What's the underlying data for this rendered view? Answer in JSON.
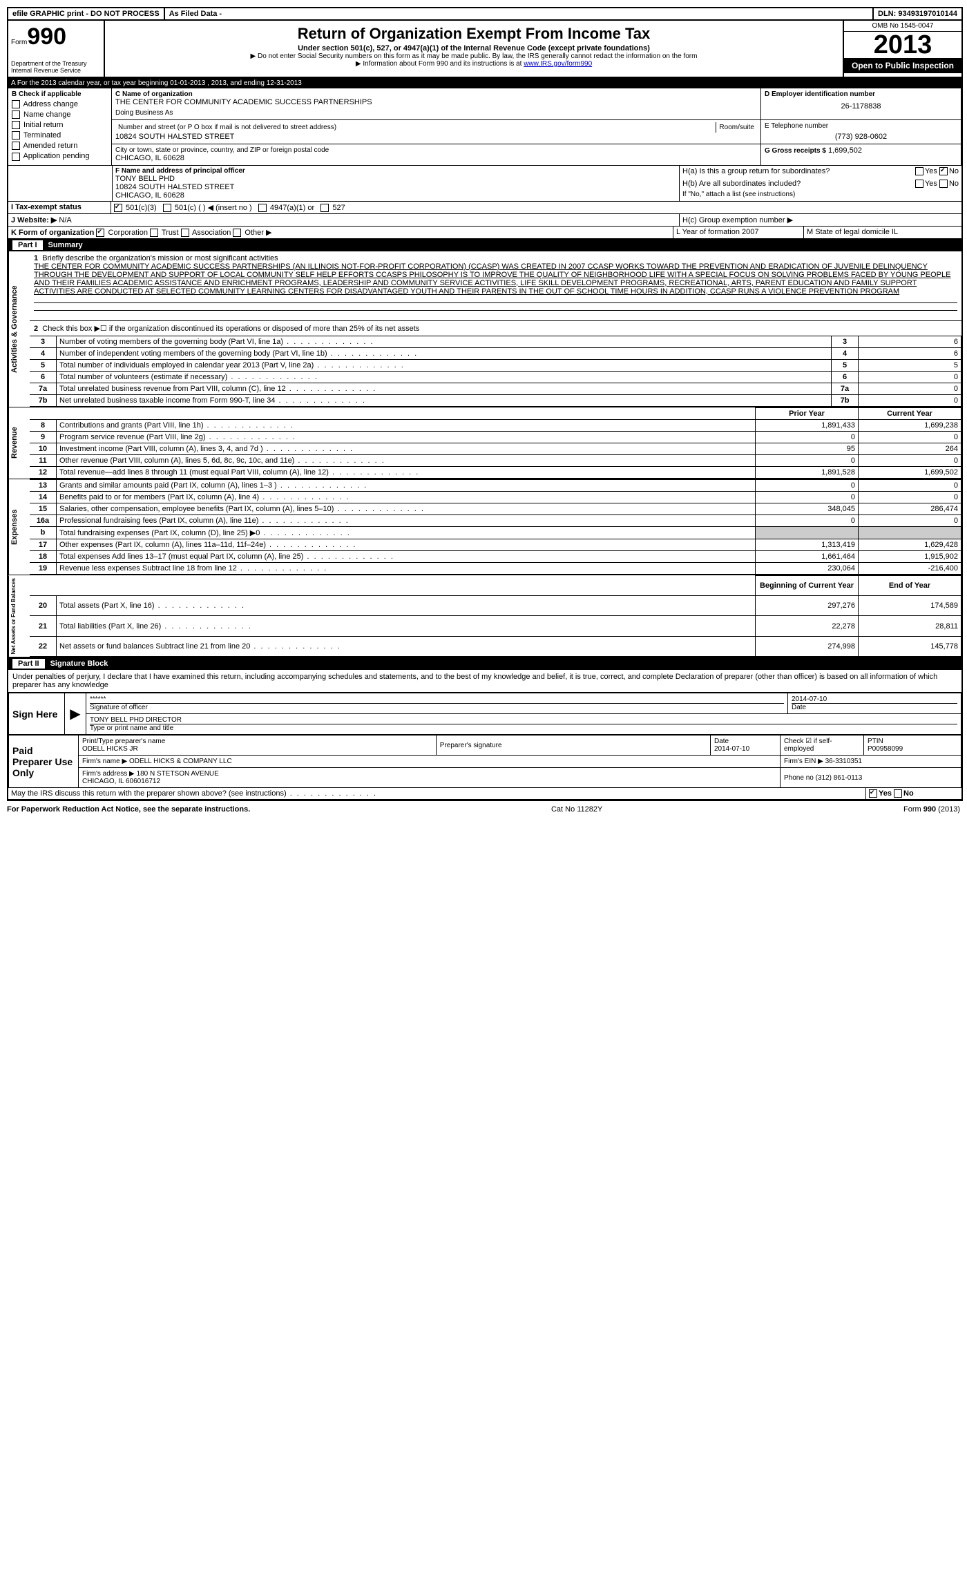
{
  "top": {
    "efile": "efile GRAPHIC print - DO NOT PROCESS",
    "asfiled": "As Filed Data -",
    "dln_label": "DLN:",
    "dln": "93493197010144"
  },
  "header": {
    "form_word": "Form",
    "form_num": "990",
    "dept": "Department of the Treasury\nInternal Revenue Service",
    "title": "Return of Organization Exempt From Income Tax",
    "sub1": "Under section 501(c), 527, or 4947(a)(1) of the Internal Revenue Code (except private foundations)",
    "sub2": "▶ Do not enter Social Security numbers on this form as it may be made public. By law, the IRS generally cannot redact the information on the form",
    "sub3": "▶ Information about Form 990 and its instructions is at ",
    "link": "www.IRS.gov/form990",
    "omb": "OMB No 1545-0047",
    "year": "2013",
    "inspect": "Open to Public Inspection"
  },
  "sectionA": "A For the 2013 calendar year, or tax year beginning 01-01-2013    , 2013, and ending 12-31-2013",
  "checkB": {
    "label": "B Check if applicable",
    "items": [
      "Address change",
      "Name change",
      "Initial return",
      "Terminated",
      "Amended return",
      "Application pending"
    ]
  },
  "org": {
    "c_label": "C Name of organization",
    "name": "THE CENTER FOR COMMUNITY ACADEMIC SUCCESS PARTNERSHIPS",
    "dba_label": "Doing Business As",
    "addr_label": "Number and street (or P O  box if mail is not delivered to street address)",
    "room_label": "Room/suite",
    "addr": "10824 SOUTH HALSTED STREET",
    "city_label": "City or town, state or province, country, and ZIP or foreign postal code",
    "city": "CHICAGO, IL  60628",
    "d_label": "D Employer identification number",
    "ein": "26-1178838",
    "e_label": "E Telephone number",
    "phone": "(773) 928-0602",
    "g_label": "G Gross receipts $",
    "gross": "1,699,502"
  },
  "officer": {
    "f_label": "F  Name and address of principal officer",
    "name": "TONY BELL PHD",
    "addr": "10824 SOUTH HALSTED STREET",
    "city": "CHICAGO, IL  60628"
  },
  "groupH": {
    "ha": "H(a)  Is this a group return for subordinates?",
    "hb": "H(b)  Are all subordinates included?",
    "hb_note": "If \"No,\" attach a list  (see instructions)",
    "hc": "H(c)   Group exemption number ▶"
  },
  "taxexempt": {
    "i": "I  Tax-exempt status",
    "opts": [
      "501(c)(3)",
      "501(c) (  ) ◀ (insert no )",
      "4947(a)(1) or",
      "527"
    ]
  },
  "website": {
    "j": "J  Website: ▶",
    "val": "N/A"
  },
  "lineK": "K Form of organization",
  "k_opts": [
    "Corporation",
    "Trust",
    "Association",
    "Other ▶"
  ],
  "lineL": "L Year of formation  2007",
  "lineM": "M State of legal domicile  IL",
  "part1": {
    "label": "Part I",
    "title": "Summary",
    "q1": "Briefly describe the organization's mission or most significant activities",
    "mission": "THE CENTER FOR COMMUNITY ACADEMIC SUCCESS PARTNERSHIPS (AN ILLINOIS NOT-FOR-PROFIT CORPORATION) (CCASP) WAS CREATED IN 2007  CCASP WORKS TOWARD THE PREVENTION AND ERADICATION OF JUVENILE DELINQUENCY THROUGH THE DEVELOPMENT AND SUPPORT OF LOCAL COMMUNITY SELF HELP EFFORTS  CCASPS PHILOSOPHY IS TO IMPROVE THE QUALITY OF NEIGHBORHOOD LIFE WITH A SPECIAL FOCUS ON SOLVING PROBLEMS FACED BY YOUNG PEOPLE AND THEIR FAMILIES  ACADEMIC ASSISTANCE AND ENRICHMENT PROGRAMS, LEADERSHIP AND COMMUNITY SERVICE ACTIVITIES, LIFE SKILL DEVELOPMENT PROGRAMS, RECREATIONAL, ARTS, PARENT EDUCATION AND FAMILY SUPPORT ACTIVITIES ARE CONDUCTED AT SELECTED COMMUNITY LEARNING CENTERS FOR DISADVANTAGED YOUTH AND THEIR PARENTS IN THE OUT OF SCHOOL TIME HOURS  IN ADDITION, CCASP RUNS A VIOLENCE PREVENTION PROGRAM",
    "q2": "Check this box ▶☐ if the organization discontinued its operations or disposed of more than 25% of its net assets"
  },
  "summary_rows": [
    {
      "n": "3",
      "t": "Number of voting members of the governing body (Part VI, line 1a)",
      "box": "3",
      "v": "6"
    },
    {
      "n": "4",
      "t": "Number of independent voting members of the governing body (Part VI, line 1b)",
      "box": "4",
      "v": "6"
    },
    {
      "n": "5",
      "t": "Total number of individuals employed in calendar year 2013 (Part V, line 2a)",
      "box": "5",
      "v": "5"
    },
    {
      "n": "6",
      "t": "Total number of volunteers (estimate if necessary)",
      "box": "6",
      "v": "0"
    },
    {
      "n": "7a",
      "t": "Total unrelated business revenue from Part VIII, column (C), line 12",
      "box": "7a",
      "v": "0"
    },
    {
      "n": "7b",
      "t": "Net unrelated business taxable income from Form 990-T, line 34",
      "box": "7b",
      "v": "0"
    }
  ],
  "two_col_header": {
    "prior": "Prior Year",
    "current": "Current Year"
  },
  "revenue_label": "Revenue",
  "revenue": [
    {
      "n": "8",
      "t": "Contributions and grants (Part VIII, line 1h)",
      "p": "1,891,433",
      "c": "1,699,238"
    },
    {
      "n": "9",
      "t": "Program service revenue (Part VIII, line 2g)",
      "p": "0",
      "c": "0"
    },
    {
      "n": "10",
      "t": "Investment income (Part VIII, column (A), lines 3, 4, and 7d )",
      "p": "95",
      "c": "264"
    },
    {
      "n": "11",
      "t": "Other revenue (Part VIII, column (A), lines 5, 6d, 8c, 9c, 10c, and 11e)",
      "p": "0",
      "c": "0"
    },
    {
      "n": "12",
      "t": "Total revenue—add lines 8 through 11 (must equal Part VIII, column (A), line 12)",
      "p": "1,891,528",
      "c": "1,699,502"
    }
  ],
  "expenses_label": "Expenses",
  "expenses": [
    {
      "n": "13",
      "t": "Grants and similar amounts paid (Part IX, column (A), lines 1–3 )",
      "p": "0",
      "c": "0"
    },
    {
      "n": "14",
      "t": "Benefits paid to or for members (Part IX, column (A), line 4)",
      "p": "0",
      "c": "0"
    },
    {
      "n": "15",
      "t": "Salaries, other compensation, employee benefits (Part IX, column (A), lines 5–10)",
      "p": "348,045",
      "c": "286,474"
    },
    {
      "n": "16a",
      "t": "Professional fundraising fees (Part IX, column (A), line 11e)",
      "p": "0",
      "c": "0"
    },
    {
      "n": "b",
      "t": "Total fundraising expenses (Part IX, column (D), line 25) ▶0",
      "p": "",
      "c": ""
    },
    {
      "n": "17",
      "t": "Other expenses (Part IX, column (A), lines 11a–11d, 11f–24e)",
      "p": "1,313,419",
      "c": "1,629,428"
    },
    {
      "n": "18",
      "t": "Total expenses  Add lines 13–17 (must equal Part IX, column (A), line 25)",
      "p": "1,661,464",
      "c": "1,915,902"
    },
    {
      "n": "19",
      "t": "Revenue less expenses  Subtract line 18 from line 12",
      "p": "230,064",
      "c": "-216,400"
    }
  ],
  "net_label": "Net Assets or Fund Balances",
  "net_header": {
    "b": "Beginning of Current Year",
    "e": "End of Year"
  },
  "net": [
    {
      "n": "20",
      "t": "Total assets (Part X, line 16)",
      "p": "297,276",
      "c": "174,589"
    },
    {
      "n": "21",
      "t": "Total liabilities (Part X, line 26)",
      "p": "22,278",
      "c": "28,811"
    },
    {
      "n": "22",
      "t": "Net assets or fund balances  Subtract line 21 from line 20",
      "p": "274,998",
      "c": "145,778"
    }
  ],
  "part2": {
    "label": "Part II",
    "title": "Signature Block",
    "perjury": "Under penalties of perjury, I declare that I have examined this return, including accompanying schedules and statements, and to the best of my knowledge and belief, it is true, correct, and complete  Declaration of preparer (other than officer) is based on all information of which preparer has any knowledge"
  },
  "sign": {
    "here": "Sign Here",
    "stars": "******",
    "sig_label": "Signature of officer",
    "date": "2014-07-10",
    "date_label": "Date",
    "name": "TONY BELL PHD DIRECTOR",
    "name_label": "Type or print name and title"
  },
  "paid": {
    "label": "Paid Preparer Use Only",
    "prep_name_label": "Print/Type preparer's name",
    "prep_name": "ODELL HICKS JR",
    "sig_label": "Preparer's signature",
    "date_label": "Date",
    "date": "2014-07-10",
    "check_label": "Check ☑ if self-employed",
    "ptin_label": "PTIN",
    "ptin": "P00958099",
    "firm_label": "Firm's name    ▶",
    "firm": "ODELL HICKS & COMPANY LLC",
    "ein_label": "Firm's EIN ▶",
    "ein": "36-3310351",
    "addr_label": "Firm's address ▶",
    "addr": "180 N STETSON AVENUE\nCHICAGO, IL  606016712",
    "phone_label": "Phone no",
    "phone": "(312) 861-0113"
  },
  "discuss": "May the IRS discuss this return with the preparer shown above? (see instructions)",
  "footer": {
    "left": "For Paperwork Reduction Act Notice, see the separate instructions.",
    "cat": "Cat  No  11282Y",
    "right": "Form 990 (2013)"
  },
  "activities_label": "Activities & Governance",
  "yes": "Yes",
  "no": "No"
}
